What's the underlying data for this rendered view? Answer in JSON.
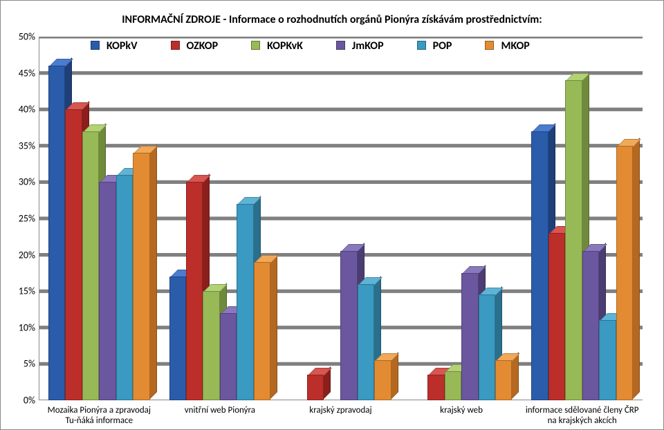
{
  "chart": {
    "type": "bar-grouped-3d",
    "title": "INFORMAČNÍ ZDROJE - Informace o rozhodnutích orgánů Pionýra získávám prostřednictvím:",
    "title_fontsize": 16,
    "legend": [
      {
        "label": "KOPkV",
        "color": "#2a5caa",
        "color_top": "#4a7cd0",
        "color_side": "#1f3f78"
      },
      {
        "label": "OZKOP",
        "color": "#bc2e2a",
        "color_top": "#d85550",
        "color_side": "#8a1f1c"
      },
      {
        "label": "KOPKvK",
        "color": "#97b956",
        "color_top": "#b3d274",
        "color_side": "#6f8a3b"
      },
      {
        "label": "JmKOP",
        "color": "#6b579f",
        "color_top": "#8a78bc",
        "color_side": "#4b3c72"
      },
      {
        "label": "POP",
        "color": "#3a9ac1",
        "color_top": "#5fb4d6",
        "color_side": "#2a6f8c"
      },
      {
        "label": "MKOP",
        "color": "#e38b32",
        "color_top": "#f1a958",
        "color_side": "#b46820"
      }
    ],
    "ylim": [
      0,
      50
    ],
    "ytick_step": 5,
    "yticks": [
      "0%",
      "5%",
      "10%",
      "15%",
      "20%",
      "25%",
      "30%",
      "35%",
      "40%",
      "45%",
      "50%"
    ],
    "categories": [
      "Mozaika Pionýra a zpravodaj Tu-ňáká informace",
      "vnitřní web Pionýra",
      "krajský zpravodaj",
      "krajský web",
      "informace sdělované členy ČRP na krajských akcích"
    ],
    "data": [
      [
        46,
        40,
        37,
        30,
        31,
        34
      ],
      [
        17,
        30,
        15,
        12,
        27,
        19
      ],
      [
        0,
        3.5,
        0,
        20.5,
        16,
        5.5
      ],
      [
        0,
        3.5,
        4,
        17.5,
        14.5,
        5.5
      ],
      [
        37,
        23,
        44,
        20.5,
        11,
        35
      ]
    ],
    "background_color": "#ffffff",
    "grid_color": "#808080",
    "bar_depth": 10
  }
}
